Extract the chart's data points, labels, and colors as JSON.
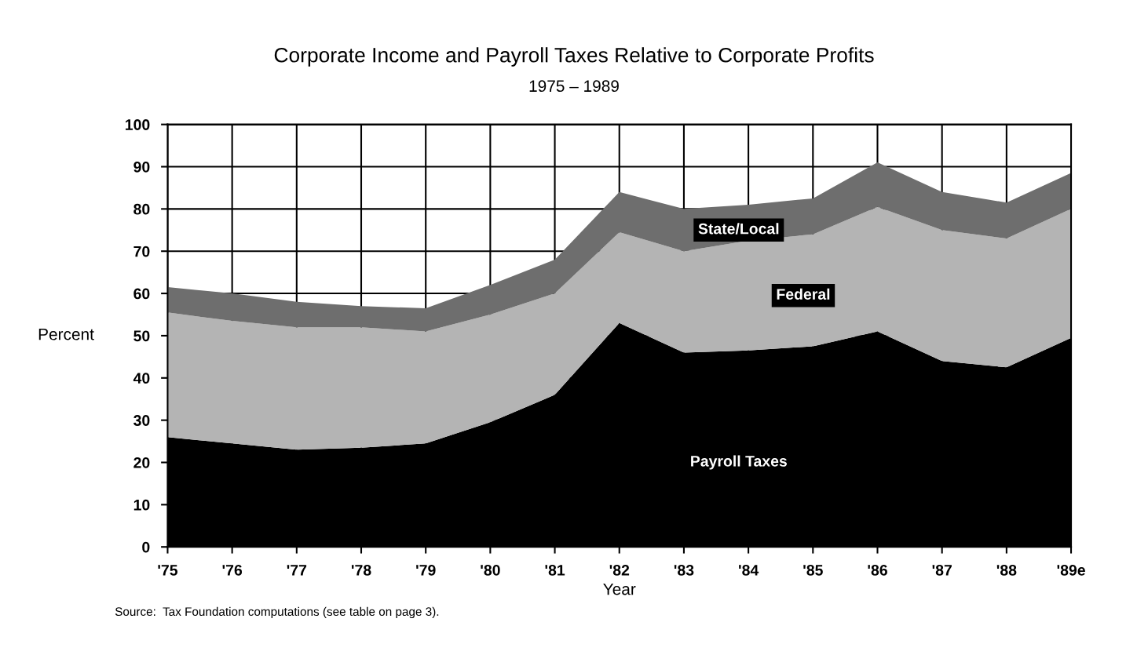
{
  "chart_data": {
    "type": "area",
    "stacked": true,
    "title": "Corporate Income and Payroll Taxes Relative to Corporate Profits",
    "subtitle": "1975 – 1989",
    "xlabel": "Year",
    "ylabel": "Percent",
    "categories": [
      "'75",
      "'76",
      "'77",
      "'78",
      "'79",
      "'80",
      "'81",
      "'82",
      "'83",
      "'84",
      "'85",
      "'86",
      "'87",
      "'88",
      "'89e"
    ],
    "series": [
      {
        "name": "Payroll Taxes",
        "color": "#000000",
        "values": [
          26,
          24.5,
          23,
          23.5,
          24.5,
          29.5,
          36,
          53,
          46,
          46.5,
          47.5,
          51,
          44,
          42.5,
          49.5
        ]
      },
      {
        "name": "Federal",
        "color": "#b4b4b4",
        "values": [
          29.5,
          29,
          29,
          28.5,
          26.5,
          25.5,
          24,
          21.5,
          24,
          26,
          26.5,
          29.5,
          31,
          30.5,
          30.5
        ]
      },
      {
        "name": "State/Local",
        "color": "#6e6e6e",
        "values": [
          6,
          6.5,
          6,
          5,
          5.5,
          7,
          8,
          9.5,
          10,
          8.5,
          8.5,
          10.5,
          9,
          8.5,
          8.5
        ]
      }
    ],
    "ylim": [
      0,
      100
    ],
    "yticks": [
      0,
      10,
      20,
      30,
      40,
      50,
      60,
      70,
      80,
      90,
      100
    ],
    "grid": true,
    "annotations": [
      "Source:  Tax Foundation computations (see table on page 3)."
    ]
  }
}
